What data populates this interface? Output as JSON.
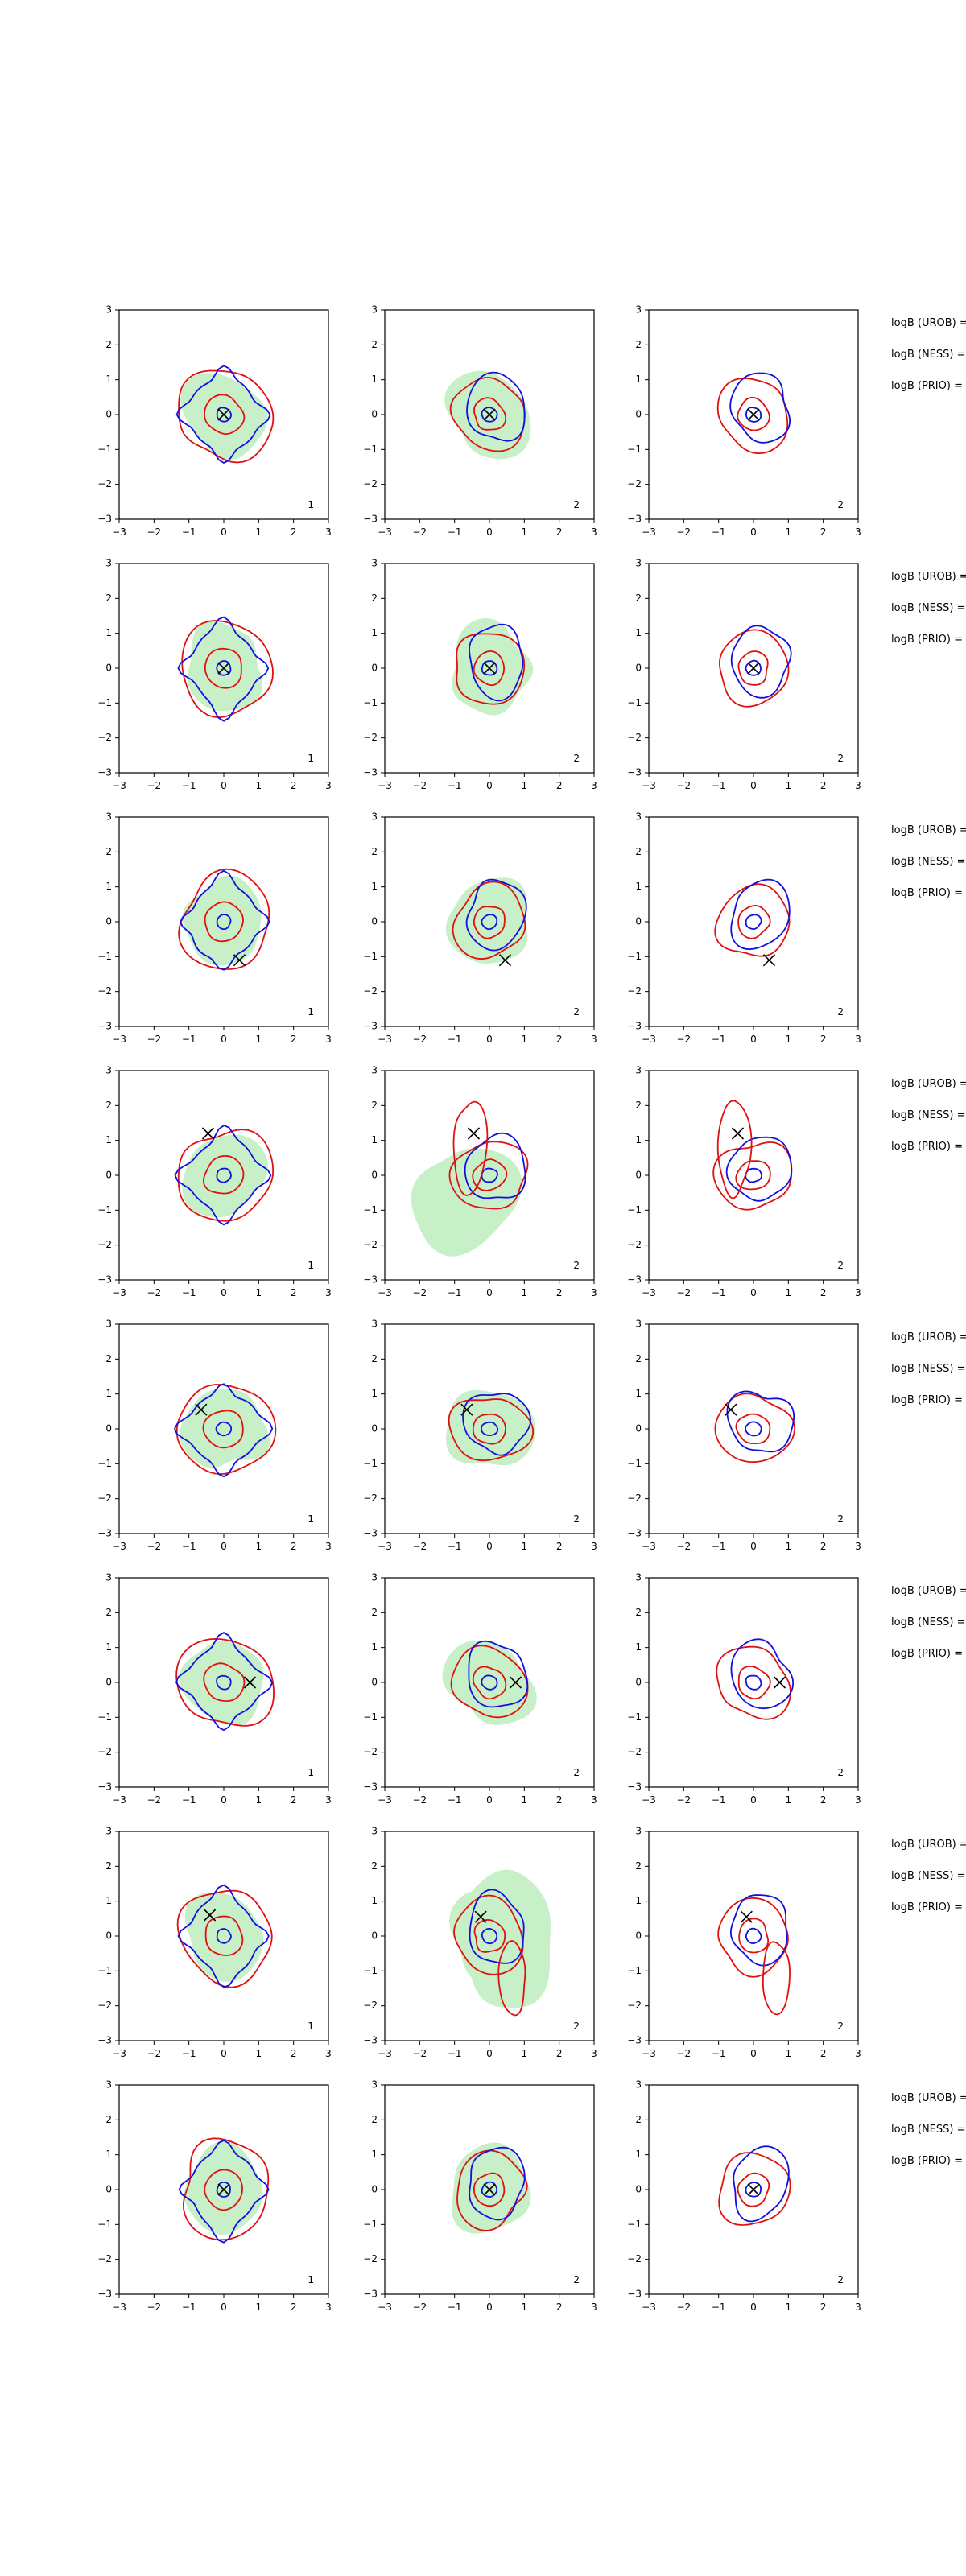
{
  "figure": {
    "axis_ticks": [
      "−3",
      "−2",
      "−1",
      "0",
      "1",
      "2",
      "3"
    ],
    "colors": {
      "prior_fill": "#c8f0c8",
      "red_contour": "#e01010",
      "blue_contour": "#1010e0",
      "marker": "#000000",
      "axes": "#000000"
    },
    "side_labels": [
      "logB (UROB) =",
      "logB (NESS) =",
      "logB (PRIO) ="
    ]
  },
  "chart_data": {
    "type": "contour-grid",
    "layout": "8 rows × 3 columns of square 2D density panels, each with a block of three text labels to the right of the row",
    "xlim": [
      -3,
      3
    ],
    "ylim": [
      -3,
      3
    ],
    "xticks": [
      -3,
      -2,
      -1,
      0,
      1,
      2,
      3
    ],
    "yticks": [
      -3,
      -2,
      -1,
      0,
      1,
      2,
      3
    ],
    "grid": false,
    "layers": [
      "green filled density region",
      "red contours",
      "blue contours",
      "black × marker"
    ],
    "panels": [
      {
        "row": 1,
        "col": 1,
        "corner_label": "1",
        "marker": [
          0.0,
          0.0
        ]
      },
      {
        "row": 1,
        "col": 2,
        "corner_label": "2",
        "marker": [
          0.0,
          0.0
        ]
      },
      {
        "row": 1,
        "col": 3,
        "corner_label": "2",
        "marker": [
          0.0,
          0.0
        ]
      },
      {
        "row": 2,
        "col": 1,
        "corner_label": "1",
        "marker": [
          0.0,
          0.0
        ]
      },
      {
        "row": 2,
        "col": 2,
        "corner_label": "2",
        "marker": [
          0.0,
          0.0
        ]
      },
      {
        "row": 2,
        "col": 3,
        "corner_label": "2",
        "marker": [
          0.0,
          0.0
        ]
      },
      {
        "row": 3,
        "col": 1,
        "corner_label": "1",
        "marker": [
          0.45,
          -1.1
        ]
      },
      {
        "row": 3,
        "col": 2,
        "corner_label": "2",
        "marker": [
          0.45,
          -1.1
        ]
      },
      {
        "row": 3,
        "col": 3,
        "corner_label": "2",
        "marker": [
          0.45,
          -1.1
        ]
      },
      {
        "row": 4,
        "col": 1,
        "corner_label": "1",
        "marker": [
          -0.45,
          1.2
        ]
      },
      {
        "row": 4,
        "col": 2,
        "corner_label": "2",
        "marker": [
          -0.45,
          1.2
        ]
      },
      {
        "row": 4,
        "col": 3,
        "corner_label": "2",
        "marker": [
          -0.45,
          1.2
        ]
      },
      {
        "row": 5,
        "col": 1,
        "corner_label": "1",
        "marker": [
          -0.65,
          0.55
        ]
      },
      {
        "row": 5,
        "col": 2,
        "corner_label": "2",
        "marker": [
          -0.65,
          0.55
        ]
      },
      {
        "row": 5,
        "col": 3,
        "corner_label": "2",
        "marker": [
          -0.65,
          0.55
        ]
      },
      {
        "row": 6,
        "col": 1,
        "corner_label": "1",
        "marker": [
          0.75,
          0.0
        ]
      },
      {
        "row": 6,
        "col": 2,
        "corner_label": "2",
        "marker": [
          0.75,
          0.0
        ]
      },
      {
        "row": 6,
        "col": 3,
        "corner_label": "2",
        "marker": [
          0.75,
          0.0
        ]
      },
      {
        "row": 7,
        "col": 1,
        "corner_label": "1",
        "marker": [
          -0.4,
          0.6
        ]
      },
      {
        "row": 7,
        "col": 2,
        "corner_label": "2",
        "marker": [
          -0.25,
          0.55
        ]
      },
      {
        "row": 7,
        "col": 3,
        "corner_label": "2",
        "marker": [
          -0.2,
          0.55
        ]
      },
      {
        "row": 8,
        "col": 1,
        "corner_label": "1",
        "marker": [
          0.0,
          0.0
        ]
      },
      {
        "row": 8,
        "col": 2,
        "corner_label": "2",
        "marker": [
          0.0,
          0.0
        ]
      },
      {
        "row": 8,
        "col": 3,
        "corner_label": "2",
        "marker": [
          0.0,
          0.0
        ]
      }
    ]
  }
}
